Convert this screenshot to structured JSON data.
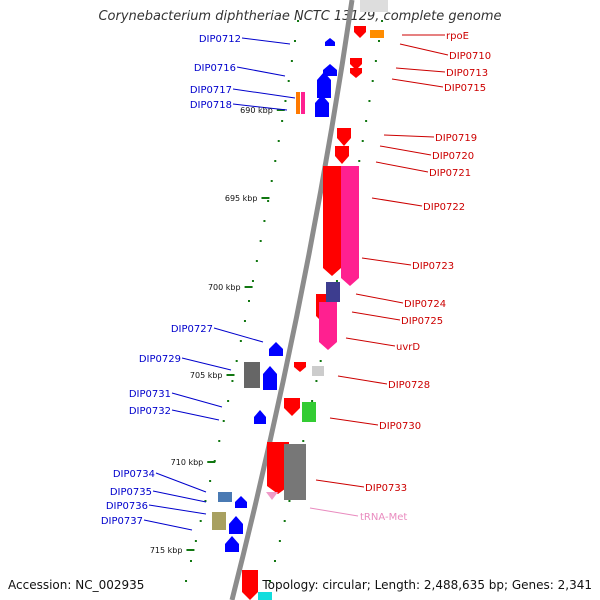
{
  "title": "Corynebacterium diphtheriae NCTC 13129, complete genome",
  "footer": {
    "accession": "Accession: NC_002935",
    "summary": "Topology: circular; Length: 2,488,635 bp; Genes: 2,341"
  },
  "colors": {
    "backbone": "#8c8c8c",
    "left_label": "#0000cc",
    "right_label": "#cc0000",
    "trna_label": "#e98bbf",
    "forward_gene": "#0000ff",
    "reverse_gene": "#ff0000",
    "reverse_gene_secondary": "#ff2090",
    "tick": "#117711"
  },
  "scale_ticks": [
    "690 kbp",
    "695 kbp",
    "700 kbp",
    "705 kbp",
    "710 kbp",
    "715 kbp"
  ],
  "left_labels": [
    "DIP0712",
    "DIP0716",
    "DIP0717",
    "DIP0718",
    "DIP0727",
    "DIP0729",
    "DIP0731",
    "DIP0732",
    "DIP0734",
    "DIP0735",
    "DIP0736",
    "DIP0737"
  ],
  "right_labels": [
    "rpoE",
    "DIP0710",
    "DIP0713",
    "DIP0715",
    "DIP0719",
    "DIP0720",
    "DIP0721",
    "DIP0722",
    "DIP0723",
    "DIP0724",
    "DIP0725",
    "uvrD",
    "DIP0728",
    "DIP0730",
    "DIP0733"
  ],
  "trna_labels": [
    "tRNA-Met"
  ]
}
